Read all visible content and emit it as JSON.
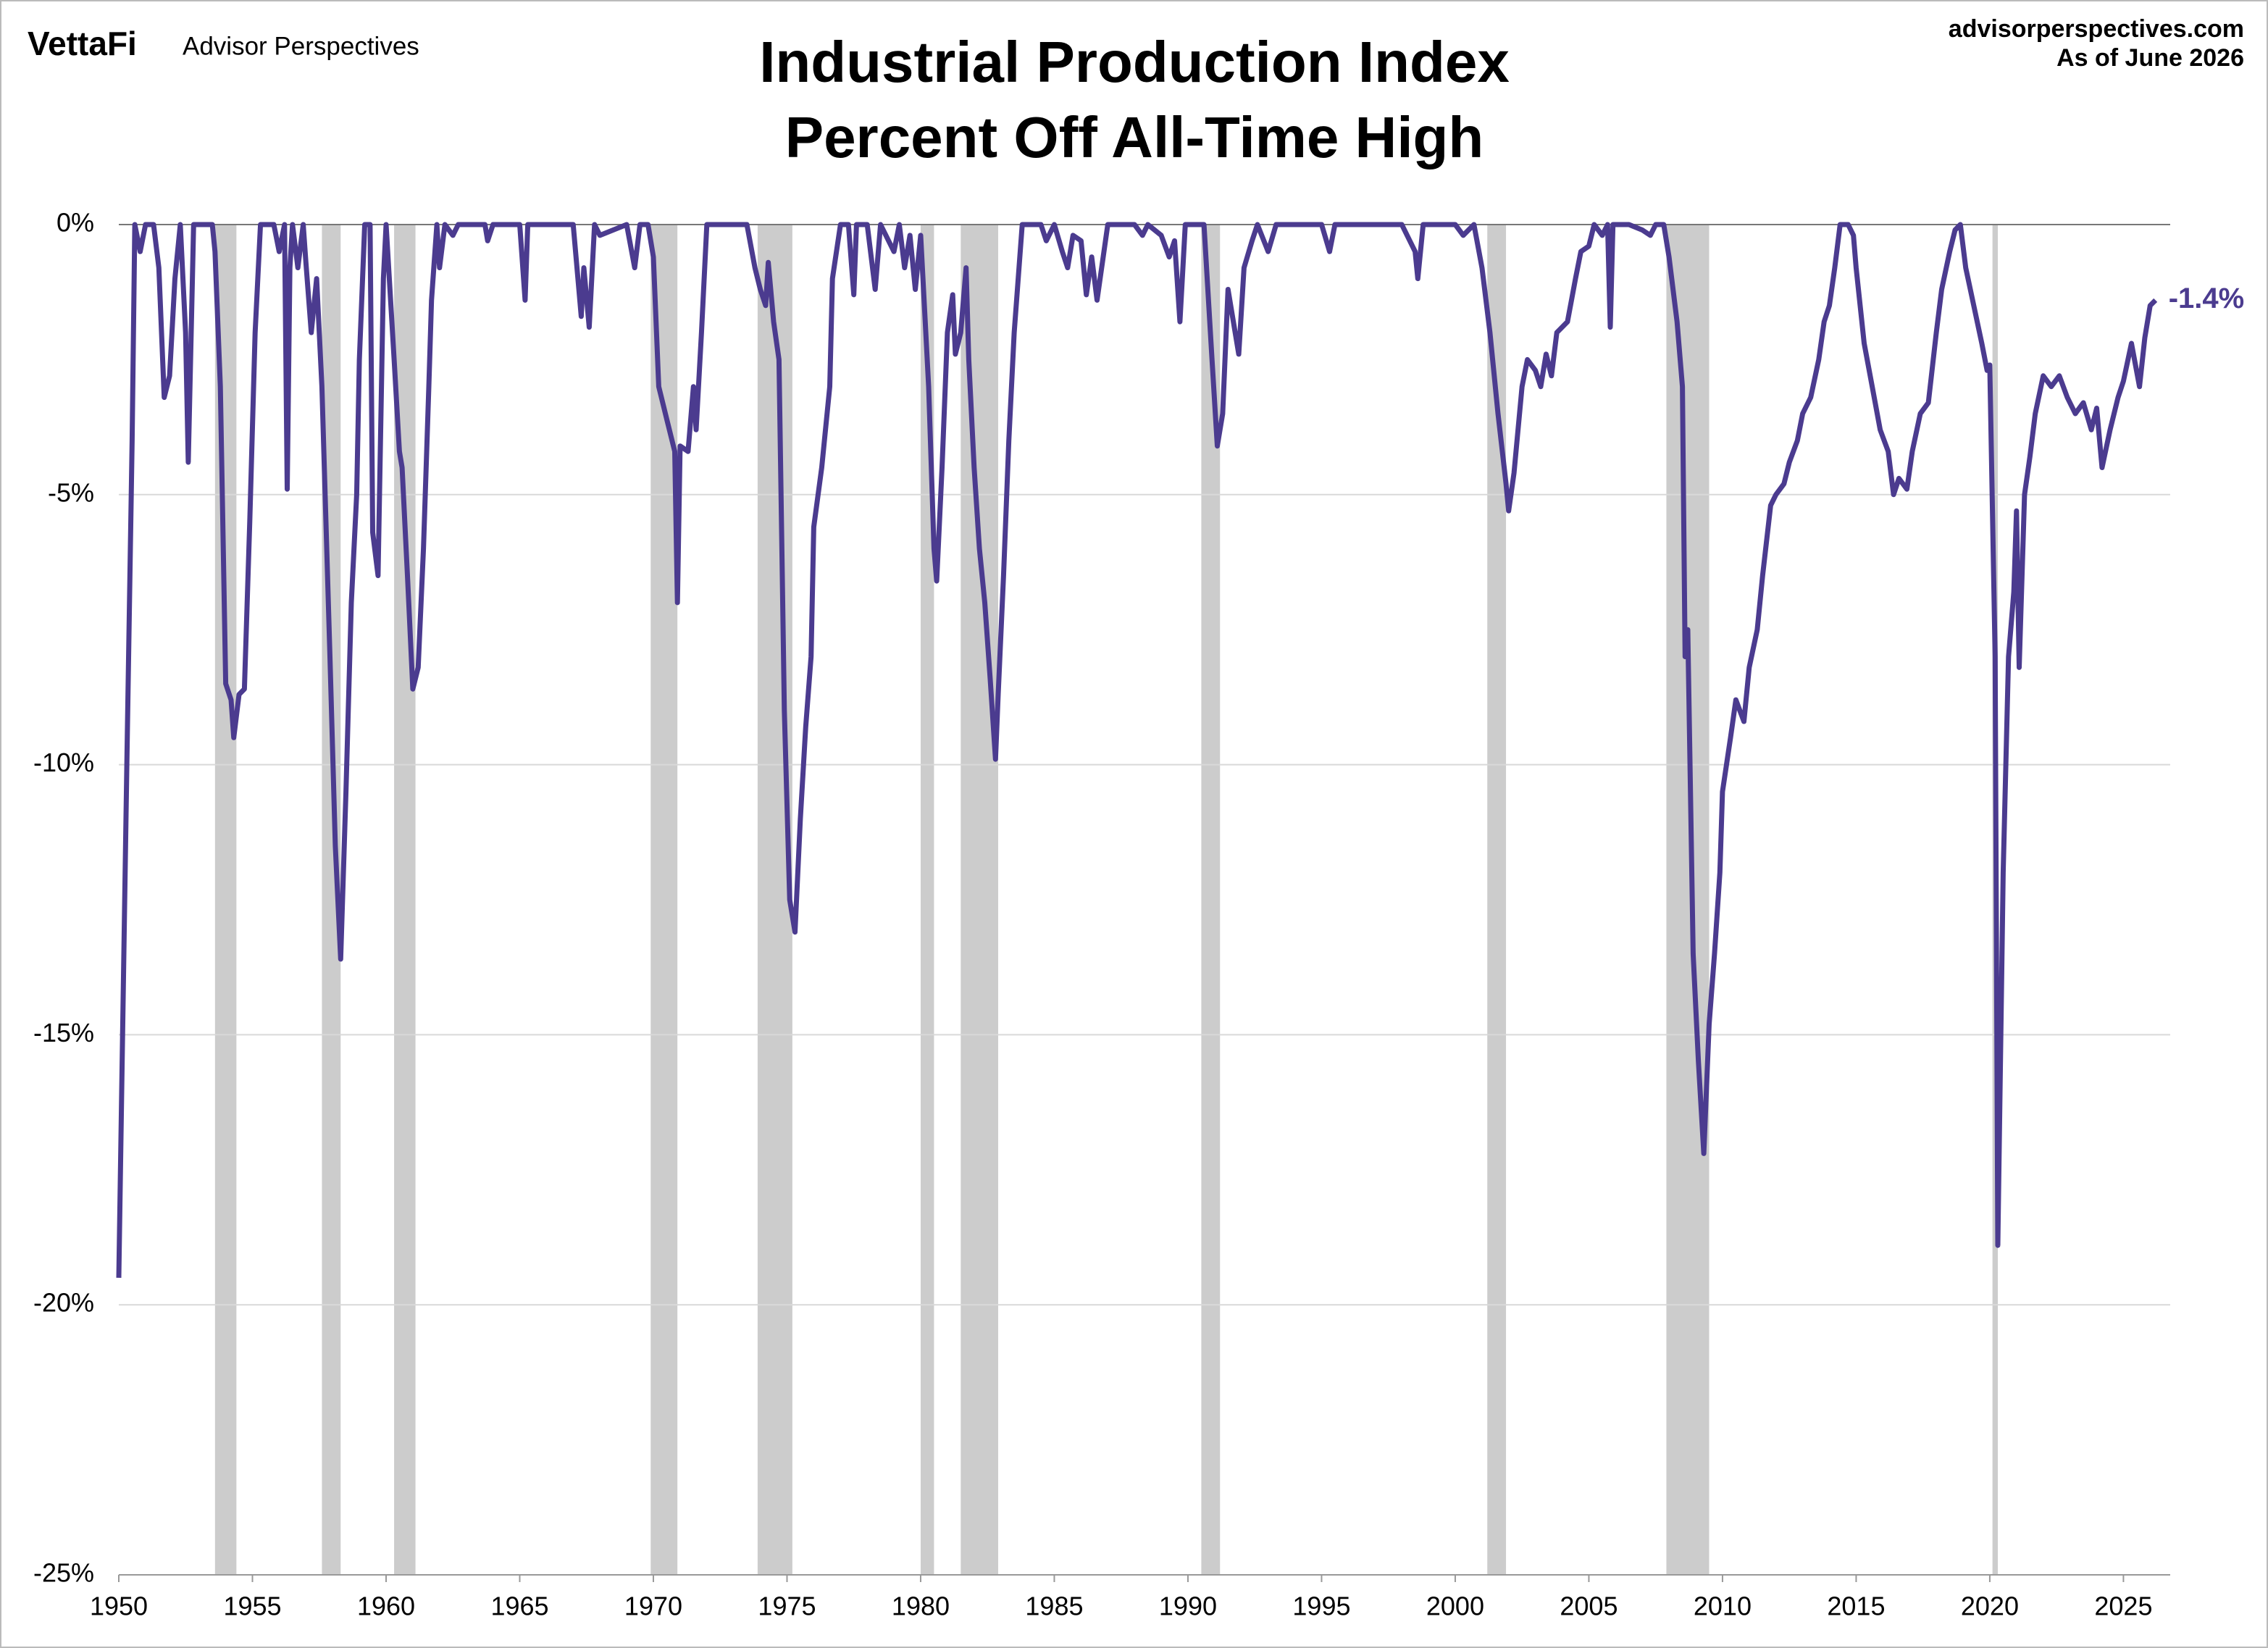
{
  "chart_data": {
    "type": "line",
    "title": "Industrial Production Index",
    "subtitle": "Percent Off All-Time High",
    "brand": "VettaFi",
    "brand_sub": "Advisor Perspectives",
    "source": "advisorperspectives.com",
    "date_note": "As of June 2026",
    "xlim": [
      1950,
      2026.75
    ],
    "xticks": [
      1950,
      1955,
      1960,
      1965,
      1970,
      1975,
      1980,
      1985,
      1990,
      1995,
      2000,
      2005,
      2010,
      2015,
      2020,
      2025
    ],
    "ylim": [
      -25,
      0
    ],
    "yticks": [
      {
        "value": 0,
        "label": "0%"
      },
      {
        "value": -5,
        "label": "-5%"
      },
      {
        "value": -10,
        "label": "-10%"
      },
      {
        "value": -15,
        "label": "-15%"
      },
      {
        "value": -20,
        "label": "-20%"
      },
      {
        "value": -25,
        "label": "-25%"
      }
    ],
    "grid": true,
    "recession_color": "#cccccc",
    "recessions": [
      [
        1953.6,
        1954.4
      ],
      [
        1957.6,
        1958.3
      ],
      [
        1960.3,
        1961.1
      ],
      [
        1969.9,
        1970.9
      ],
      [
        1973.9,
        1975.2
      ],
      [
        1980.0,
        1980.5
      ],
      [
        1981.5,
        1982.9
      ],
      [
        1990.5,
        1991.2
      ],
      [
        2001.2,
        2001.9
      ],
      [
        2007.9,
        2009.5
      ],
      [
        2020.1,
        2020.3
      ]
    ],
    "x": [
      1950.0,
      1950.1,
      1950.3,
      1950.5,
      1950.6,
      1950.8,
      1951.0,
      1951.3,
      1951.5,
      1951.7,
      1951.9,
      1952.1,
      1952.3,
      1952.5,
      1952.6,
      1952.8,
      1953.5,
      1953.6,
      1953.8,
      1954.0,
      1954.2,
      1954.3,
      1954.5,
      1954.7,
      1954.9,
      1955.1,
      1955.3,
      1955.8,
      1956.0,
      1956.2,
      1956.3,
      1956.4,
      1956.5,
      1956.7,
      1956.9,
      1957.0,
      1957.2,
      1957.4,
      1957.6,
      1957.9,
      1958.1,
      1958.3,
      1958.5,
      1958.7,
      1958.9,
      1959.0,
      1959.2,
      1959.4,
      1959.5,
      1959.7,
      1959.9,
      1960.0,
      1960.3,
      1960.5,
      1960.6,
      1960.8,
      1961.0,
      1961.2,
      1961.4,
      1961.6,
      1961.7,
      1961.9,
      1962.0,
      1962.2,
      1962.5,
      1962.7,
      1963.0,
      1963.7,
      1963.8,
      1964.0,
      1965.0,
      1965.2,
      1965.3,
      1967.0,
      1967.3,
      1967.4,
      1967.6,
      1967.8,
      1968.0,
      1969.0,
      1969.3,
      1969.5,
      1969.8,
      1970.0,
      1970.2,
      1970.5,
      1970.8,
      1970.9,
      1971.0,
      1971.3,
      1971.5,
      1971.6,
      1971.8,
      1972.0,
      1973.5,
      1973.8,
      1974.0,
      1974.2,
      1974.3,
      1974.5,
      1974.7,
      1974.9,
      1975.1,
      1975.3,
      1975.5,
      1975.7,
      1975.9,
      1976.0,
      1976.3,
      1976.6,
      1976.7,
      1977.0,
      1977.3,
      1977.5,
      1977.6,
      1978.0,
      1978.3,
      1978.5,
      1979.0,
      1979.2,
      1979.4,
      1979.6,
      1979.8,
      1980.0,
      1980.3,
      1980.5,
      1980.6,
      1980.8,
      1981.0,
      1981.2,
      1981.3,
      1981.5,
      1981.7,
      1981.8,
      1982.0,
      1982.2,
      1982.4,
      1982.6,
      1982.8,
      1982.9,
      1983.1,
      1983.3,
      1983.5,
      1983.8,
      1984.5,
      1984.7,
      1985.0,
      1985.3,
      1985.5,
      1985.7,
      1986.0,
      1986.2,
      1986.4,
      1986.6,
      1987.0,
      1988.0,
      1988.3,
      1988.5,
      1989.0,
      1989.3,
      1989.5,
      1989.7,
      1989.9,
      1990.3,
      1990.6,
      1990.9,
      1991.1,
      1991.3,
      1991.5,
      1991.7,
      1991.9,
      1992.1,
      1992.4,
      1992.6,
      1993.0,
      1993.3,
      1995.0,
      1995.3,
      1995.5,
      1996.0,
      1997.0,
      1998.0,
      1998.5,
      1998.6,
      1998.8,
      2000.0,
      2000.3,
      2000.7,
      2001.0,
      2001.3,
      2001.6,
      2001.9,
      2002.0,
      2002.2,
      2002.5,
      2002.7,
      2003.0,
      2003.2,
      2003.4,
      2003.6,
      2003.8,
      2004.2,
      2004.5,
      2004.7,
      2005.0,
      2005.2,
      2005.5,
      2005.7,
      2005.8,
      2005.9,
      2006.5,
      2007.0,
      2007.3,
      2007.5,
      2007.8,
      2008.0,
      2008.3,
      2008.5,
      2008.6,
      2008.7,
      2008.9,
      2009.1,
      2009.3,
      2009.5,
      2009.7,
      2009.9,
      2010.0,
      2010.3,
      2010.5,
      2010.8,
      2011.0,
      2011.3,
      2011.5,
      2011.8,
      2012.0,
      2012.3,
      2012.5,
      2012.8,
      2013.0,
      2013.3,
      2013.6,
      2013.8,
      2014.0,
      2014.2,
      2014.4,
      2014.7,
      2014.9,
      2015.0,
      2015.3,
      2015.6,
      2015.9,
      2016.2,
      2016.4,
      2016.6,
      2016.9,
      2017.1,
      2017.4,
      2017.7,
      2018.0,
      2018.2,
      2018.5,
      2018.7,
      2018.9,
      2019.1,
      2019.4,
      2019.7,
      2019.9,
      2020.0,
      2020.2,
      2020.3,
      2020.5,
      2020.7,
      2020.9,
      2021.0,
      2021.1,
      2021.3,
      2021.5,
      2021.7,
      2022.0,
      2022.3,
      2022.6,
      2022.9,
      2023.2,
      2023.5,
      2023.8,
      2024.0,
      2024.2,
      2024.5,
      2024.8,
      2025.0,
      2025.3,
      2025.6,
      2025.8,
      2026.0,
      2026.2
    ],
    "series": [
      {
        "name": "Industrial Production Index",
        "color": "#4b3b8f",
        "last_label": "-1.4%",
        "values": [
          -19.5,
          -16.3,
          -10,
          -4,
          0,
          -0.5,
          0,
          0,
          -0.8,
          -3.2,
          -2.8,
          -1.0,
          0,
          -2,
          -4.4,
          0,
          0,
          -0.5,
          -3,
          -8.5,
          -8.8,
          -9.5,
          -8.7,
          -8.6,
          -5.5,
          -2,
          0,
          0,
          -0.5,
          0,
          -4.9,
          -0.8,
          0,
          -0.8,
          0,
          -0.7,
          -2.0,
          -1.0,
          -3,
          -8,
          -11.5,
          -13.6,
          -10.5,
          -7,
          -5,
          -2.5,
          0,
          0,
          -5.7,
          -6.5,
          -1,
          0,
          -2.5,
          -4.2,
          -4.5,
          -6.5,
          -8.6,
          -8.2,
          -6,
          -3,
          -1.4,
          0,
          -0.8,
          0,
          -0.2,
          0,
          0,
          0,
          -0.3,
          0,
          0,
          -1.4,
          0,
          0,
          -1.7,
          -0.8,
          -1.9,
          0,
          -0.2,
          0,
          -0.8,
          0,
          0,
          -0.6,
          -3,
          -3.6,
          -4.2,
          -7,
          -4.1,
          -4.2,
          -3,
          -3.8,
          -2,
          0,
          0,
          -0.8,
          -1.2,
          -1.5,
          -0.7,
          -1.8,
          -2.5,
          -9,
          -12.5,
          -13.1,
          -11,
          -9.3,
          -8,
          -5.6,
          -4.5,
          -3,
          -1,
          0,
          0,
          -1.3,
          0,
          0,
          -1.2,
          0,
          -0.5,
          0,
          -0.8,
          -0.2,
          -1.2,
          -0.2,
          -3,
          -6,
          -6.6,
          -4.5,
          -2,
          -1.3,
          -2.4,
          -2,
          -0.8,
          -2.5,
          -4.5,
          -6,
          -7,
          -8.4,
          -9.9,
          -8.7,
          -6.5,
          -4,
          -2,
          0,
          0,
          -0.3,
          0,
          -0.5,
          -0.8,
          -0.2,
          -0.3,
          -1.3,
          -0.6,
          -1.4,
          0,
          0,
          -0.2,
          0,
          -0.2,
          -0.6,
          -0.3,
          -1.8,
          0,
          0,
          0,
          -2.5,
          -4.1,
          -3.5,
          -1.2,
          -1.8,
          -2.4,
          -0.8,
          -0.3,
          0,
          -0.5,
          0,
          0,
          -0.5,
          0,
          0,
          0,
          0,
          -0.5,
          -1,
          0,
          0,
          -0.2,
          0,
          -0.8,
          -2,
          -3.5,
          -4.8,
          -5.3,
          -4.6,
          -3,
          -2.5,
          -2.7,
          -3,
          -2.4,
          -2.8,
          -2,
          -1.8,
          -1,
          -0.5,
          -0.4,
          0,
          -0.2,
          0,
          -1.9,
          0,
          0,
          -0.1,
          -0.2,
          0,
          0,
          -0.6,
          -1.8,
          -3,
          -8,
          -7.5,
          -13.5,
          -15.5,
          -17.2,
          -14.8,
          -13.5,
          -12,
          -10.5,
          -9.5,
          -8.8,
          -9.2,
          -8.2,
          -7.5,
          -6.5,
          -5.2,
          -5,
          -4.8,
          -4.4,
          -4,
          -3.5,
          -3.2,
          -2.5,
          -1.8,
          -1.5,
          -0.8,
          0,
          0,
          -0.2,
          -0.8,
          -2.2,
          -3,
          -3.8,
          -4.2,
          -5.0,
          -4.7,
          -4.9,
          -4.2,
          -3.5,
          -3.3,
          -2,
          -1.2,
          -0.5,
          -0.1,
          0,
          -0.8,
          -1.5,
          -2.2,
          -2.7,
          -2.6,
          -8,
          -18.9,
          -12,
          -8,
          -6.8,
          -5.3,
          -8.2,
          -5,
          -4.3,
          -3.5,
          -2.8,
          -3,
          -2.8,
          -3.2,
          -3.5,
          -3.3,
          -3.8,
          -3.4,
          -4.5,
          -3.8,
          -3.2,
          -2.9,
          -2.2,
          -3.0,
          -2.1,
          -1.5,
          -1.4
        ]
      }
    ]
  }
}
